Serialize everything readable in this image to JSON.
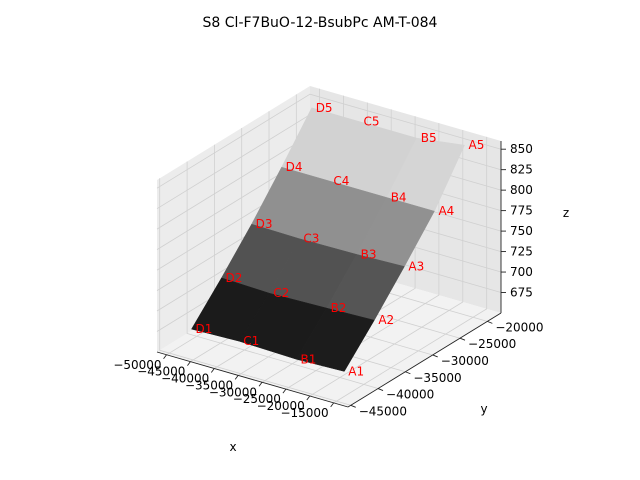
{
  "chart_data": {
    "type": "surface",
    "title": "S8 Cl-F7BuO-12-BsubPc AM-T-084",
    "xlabel": "x",
    "ylabel": "y",
    "zlabel": "z",
    "x_ticks": [
      "−50000",
      "−45000",
      "−40000",
      "−35000",
      "−30000",
      "−25000",
      "−20000",
      "−15000"
    ],
    "y_ticks": [
      "−45000",
      "−40000",
      "−35000",
      "−30000",
      "−25000",
      "−20000"
    ],
    "z_ticks": [
      "675",
      "700",
      "725",
      "750",
      "775",
      "800",
      "825",
      "850"
    ],
    "colormap": "gray",
    "rows": [
      "1",
      "2",
      "3",
      "4",
      "5"
    ],
    "columns": [
      "D",
      "C",
      "B",
      "A"
    ],
    "points": [
      {
        "label": "D1",
        "x": -50500,
        "y": -40500,
        "z": 660
      },
      {
        "label": "C1",
        "x": -40500,
        "y": -40500,
        "z": 662
      },
      {
        "label": "B1",
        "x": -28500,
        "y": -40500,
        "z": 660
      },
      {
        "label": "A1",
        "x": -18500,
        "y": -40500,
        "z": 662
      },
      {
        "label": "D2",
        "x": -50500,
        "y": -35000,
        "z": 700
      },
      {
        "label": "C2",
        "x": -40500,
        "y": -35000,
        "z": 698
      },
      {
        "label": "B2",
        "x": -28500,
        "y": -35000,
        "z": 700
      },
      {
        "label": "A2",
        "x": -18500,
        "y": -35000,
        "z": 702
      },
      {
        "label": "D3",
        "x": -50500,
        "y": -29500,
        "z": 743
      },
      {
        "label": "C3",
        "x": -40500,
        "y": -29500,
        "z": 742
      },
      {
        "label": "B3",
        "x": -28500,
        "y": -29500,
        "z": 743
      },
      {
        "label": "A3",
        "x": -18500,
        "y": -29500,
        "z": 745
      },
      {
        "label": "D4",
        "x": -50500,
        "y": -24000,
        "z": 790
      },
      {
        "label": "C4",
        "x": -40500,
        "y": -24000,
        "z": 790
      },
      {
        "label": "B4",
        "x": -28500,
        "y": -24000,
        "z": 790
      },
      {
        "label": "A4",
        "x": -18500,
        "y": -24000,
        "z": 790
      },
      {
        "label": "D5",
        "x": -50500,
        "y": -18500,
        "z": 840
      },
      {
        "label": "C5",
        "x": -40500,
        "y": -18500,
        "z": 840
      },
      {
        "label": "B5",
        "x": -28500,
        "y": -18500,
        "z": 840
      },
      {
        "label": "A5",
        "x": -18500,
        "y": -18500,
        "z": 848
      }
    ]
  }
}
